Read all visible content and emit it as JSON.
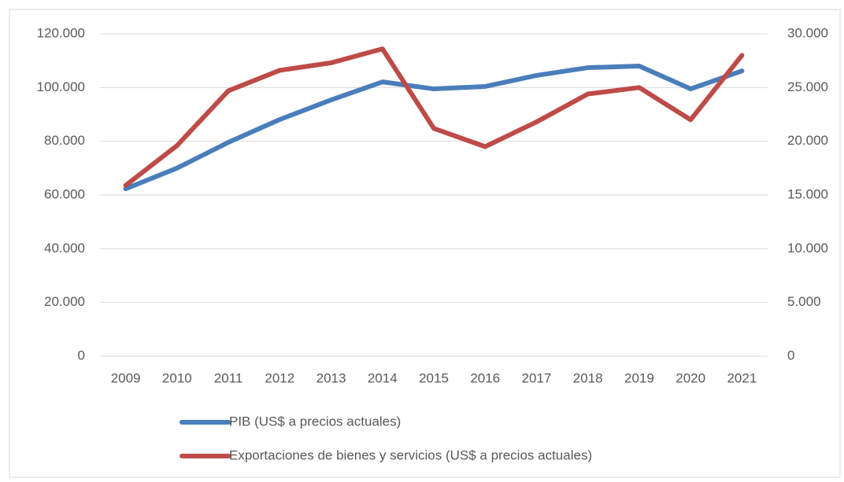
{
  "chart_data": {
    "type": "line",
    "categories": [
      "2009",
      "2010",
      "2011",
      "2012",
      "2013",
      "2014",
      "2015",
      "2016",
      "2017",
      "2018",
      "2019",
      "2020",
      "2021"
    ],
    "series": [
      {
        "name": "PIB (US$ a precios actuales)",
        "color": "#4a7ebb",
        "axis": "y",
        "values": [
          62300,
          70000,
          79600,
          88100,
          95400,
          102100,
          99500,
          100400,
          104500,
          107400,
          108000,
          99500,
          106200
        ]
      },
      {
        "name": "Exportaciones de bienes y servicios (US$ a precios actuales)",
        "color": "#be4b48",
        "axis": "y2",
        "values": [
          15900,
          19600,
          24700,
          26600,
          27300,
          28600,
          21200,
          19500,
          21800,
          24400,
          25000,
          22000,
          28000
        ]
      }
    ],
    "ylim": [
      0,
      120000
    ],
    "yticks": [
      0,
      {
        "value": 20000,
        "label": "20.000"
      },
      {
        "value": 40000,
        "label": "40.000"
      },
      {
        "value": 60000,
        "label": "60.000"
      },
      {
        "value": 80000,
        "label": "80.000"
      },
      {
        "value": 100000,
        "label": "100.000"
      },
      {
        "value": 120000,
        "label": "120.000"
      }
    ],
    "y2lim": [
      0,
      30000
    ],
    "y2ticks": [
      0,
      {
        "value": 5000,
        "label": "5.000"
      },
      {
        "value": 10000,
        "label": "10.000"
      },
      {
        "value": 15000,
        "label": "15.000"
      },
      {
        "value": 20000,
        "label": "20.000"
      },
      {
        "value": 25000,
        "label": "25.000"
      },
      {
        "value": 30000,
        "label": "30.000"
      }
    ],
    "grid": true,
    "legend": "bottom"
  }
}
